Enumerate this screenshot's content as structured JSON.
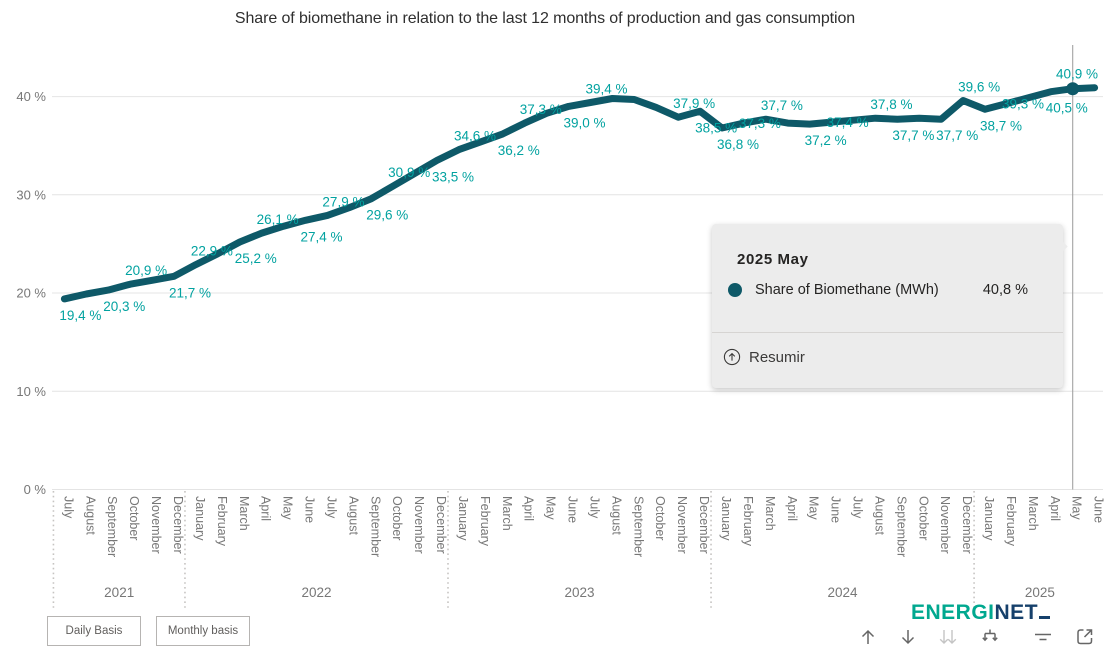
{
  "page": {
    "title": "Share of biomethane in relation to the last 12 months of production and gas consumption"
  },
  "chart_data": {
    "type": "line",
    "title": "Share of biomethane in relation to the last 12 months of production and gas consumption",
    "series_name": "Share of Biomethane (MWh)",
    "unit": "%",
    "grid": true,
    "ylim": [
      0,
      45
    ],
    "y_ticks": [
      {
        "label": "0 %",
        "value": 0
      },
      {
        "label": "10 %",
        "value": 10
      },
      {
        "label": "20 %",
        "value": 20
      },
      {
        "label": "30 %",
        "value": 30
      },
      {
        "label": "40 %",
        "value": 40
      }
    ],
    "x_months": [
      "July",
      "August",
      "September",
      "October",
      "November",
      "December",
      "January",
      "February",
      "March",
      "April",
      "May",
      "June",
      "July",
      "August",
      "September",
      "October",
      "November",
      "December",
      "January",
      "February",
      "March",
      "April",
      "May",
      "June",
      "July",
      "August",
      "September",
      "October",
      "November",
      "December",
      "January",
      "February",
      "March",
      "April",
      "May",
      "June",
      "July",
      "August",
      "September",
      "October",
      "November",
      "December",
      "January",
      "February",
      "March",
      "April",
      "May",
      "June"
    ],
    "x_years": [
      {
        "label": "2021",
        "from": 0,
        "to": 5
      },
      {
        "label": "2022",
        "from": 6,
        "to": 17
      },
      {
        "label": "2023",
        "from": 18,
        "to": 29
      },
      {
        "label": "2024",
        "from": 30,
        "to": 41
      },
      {
        "label": "2025",
        "from": 42,
        "to": 47
      }
    ],
    "values": [
      19.4,
      19.9,
      20.3,
      20.9,
      21.3,
      21.7,
      22.9,
      24.0,
      25.2,
      26.1,
      26.8,
      27.4,
      27.9,
      28.7,
      29.6,
      30.9,
      32.2,
      33.5,
      34.6,
      35.4,
      36.2,
      37.3,
      38.3,
      39.0,
      39.4,
      39.8,
      39.7,
      38.9,
      37.9,
      38.5,
      36.8,
      37.3,
      37.7,
      37.3,
      37.2,
      37.4,
      37.6,
      37.8,
      37.7,
      37.8,
      37.7,
      39.6,
      38.7,
      39.3,
      39.9,
      40.5,
      40.8,
      40.9
    ],
    "data_labels": [
      {
        "i": 0,
        "text": "19,4 %",
        "pos": "below"
      },
      {
        "i": 2,
        "text": "20,3 %",
        "pos": "below"
      },
      {
        "i": 3,
        "text": "20,9 %",
        "pos": "above"
      },
      {
        "i": 5,
        "text": "21,7 %",
        "pos": "below"
      },
      {
        "i": 6,
        "text": "22,9 %",
        "pos": "above"
      },
      {
        "i": 8,
        "text": "25,2 %",
        "pos": "below"
      },
      {
        "i": 9,
        "text": "26,1 %",
        "pos": "above"
      },
      {
        "i": 11,
        "text": "27,4 %",
        "pos": "below"
      },
      {
        "i": 12,
        "text": "27,9 %",
        "pos": "above"
      },
      {
        "i": 14,
        "text": "29,6 %",
        "pos": "below"
      },
      {
        "i": 15,
        "text": "30,9 %",
        "pos": "above"
      },
      {
        "i": 17,
        "text": "33,5 %",
        "pos": "below"
      },
      {
        "i": 18,
        "text": "34,6 %",
        "pos": "above"
      },
      {
        "i": 20,
        "text": "36,2 %",
        "pos": "below"
      },
      {
        "i": 21,
        "text": "37,3 %",
        "pos": "above"
      },
      {
        "i": 23,
        "text": "39,0 %",
        "pos": "below"
      },
      {
        "i": 24,
        "text": "39,4 %",
        "pos": "above"
      },
      {
        "i": 28,
        "text": "37,9 %",
        "pos": "above"
      },
      {
        "i": 29,
        "text": "38,5 %",
        "pos": "below"
      },
      {
        "i": 30,
        "text": "36,8 %",
        "pos": "below"
      },
      {
        "i": 31,
        "text": "37,3 %",
        "pos": "mid"
      },
      {
        "i": 32,
        "text": "37,7 %",
        "pos": "above"
      },
      {
        "i": 34,
        "text": "37,2 %",
        "pos": "below"
      },
      {
        "i": 35,
        "text": "37,4 %",
        "pos": "mid"
      },
      {
        "i": 37,
        "text": "37,8 %",
        "pos": "above"
      },
      {
        "i": 38,
        "text": "37,7 %",
        "pos": "below"
      },
      {
        "i": 40,
        "text": "37,7 %",
        "pos": "below"
      },
      {
        "i": 41,
        "text": "39,6 %",
        "pos": "above"
      },
      {
        "i": 42,
        "text": "38,7 %",
        "pos": "below"
      },
      {
        "i": 43,
        "text": "39,3 %",
        "pos": "mid"
      },
      {
        "i": 45,
        "text": "40,5 %",
        "pos": "below"
      },
      {
        "i": 47,
        "text": "40,9 %",
        "pos": "above"
      }
    ],
    "selected_point": {
      "month_index": 46,
      "label": "2025 May",
      "value_pct": 40.8
    },
    "legend_position": "none"
  },
  "tooltip": {
    "title": "2025 May",
    "series": "Share of Biomethane (MWh)",
    "value": "40,8 %",
    "action": "Resumir"
  },
  "buttons": {
    "daily": "Daily Basis",
    "monthly": "Monthly basis"
  },
  "logo": {
    "part1": "ENERGI",
    "part2": "NET"
  },
  "toolbar_icons": [
    "drill-up",
    "drill-down",
    "show-next-level",
    "expand-all-down",
    "filter",
    "focus-mode"
  ],
  "colors": {
    "line": "#0e5968",
    "data_label": "#02a2a0",
    "axis_text": "#777777",
    "grid": "#e4e4e4",
    "tooltip_bg": "#ececec",
    "marker_line": "#9a9a9a",
    "logo_green": "#00a88f",
    "logo_navy": "#16406b",
    "icon_dark": "#666666",
    "icon_light": "#c4c4c4"
  }
}
